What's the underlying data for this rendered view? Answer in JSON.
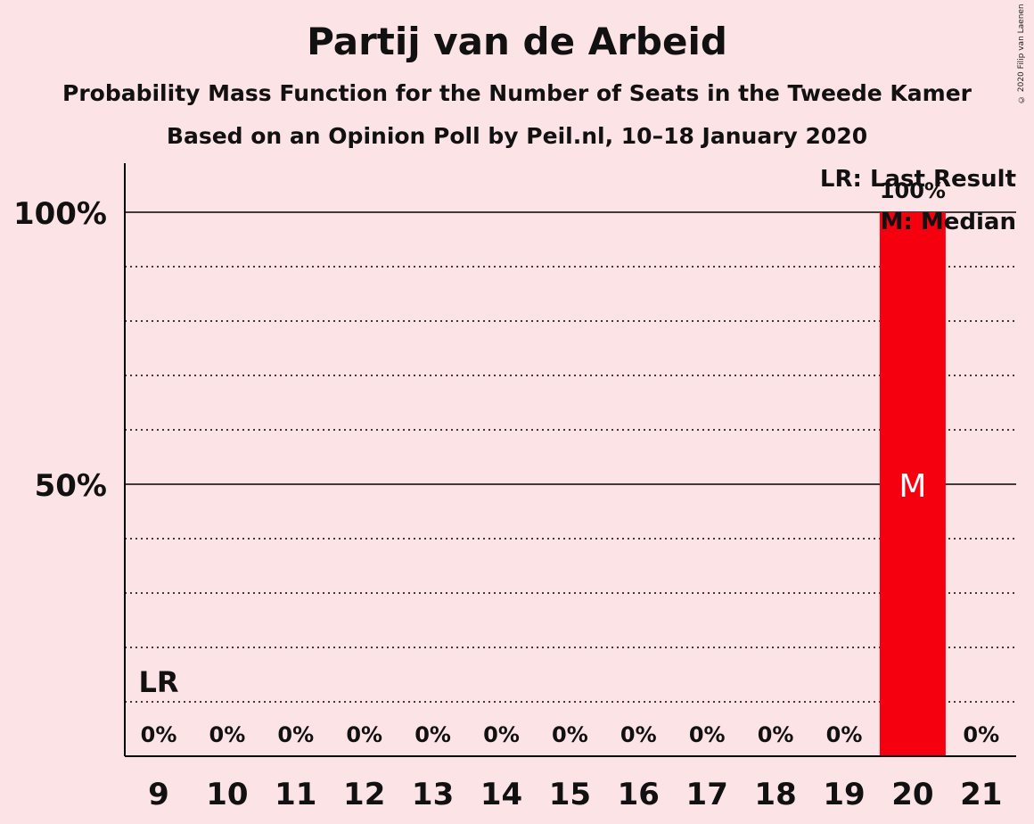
{
  "header": {
    "title": "Partij van de Arbeid",
    "subtitle1": "Probability Mass Function for the Number of Seats in the Tweede Kamer",
    "subtitle2": "Based on an Opinion Poll by Peil.nl, 10–18 January 2020",
    "copyright": "© 2020 Filip van Laenen"
  },
  "chart_data": {
    "type": "bar",
    "categories": [
      "9",
      "10",
      "11",
      "12",
      "13",
      "14",
      "15",
      "16",
      "17",
      "18",
      "19",
      "20",
      "21"
    ],
    "values": [
      0,
      0,
      0,
      0,
      0,
      0,
      0,
      0,
      0,
      0,
      0,
      100,
      0
    ],
    "data_labels": [
      "0%",
      "0%",
      "0%",
      "0%",
      "0%",
      "0%",
      "0%",
      "0%",
      "0%",
      "0%",
      "0%",
      "100%",
      "0%"
    ],
    "ylim": [
      0,
      100
    ],
    "yticks": [
      {
        "value": 50,
        "label": "50%"
      },
      {
        "value": 100,
        "label": "100%"
      }
    ],
    "minor_grid_step": 10,
    "last_result": {
      "category": "9",
      "label": "LR"
    },
    "median": {
      "category": "20",
      "label": "M"
    },
    "legend": {
      "lines": [
        "LR: Last Result",
        "M: Median"
      ],
      "placement": "top-right"
    },
    "colors": {
      "bar": "#f5000f",
      "background": "#fce4e6",
      "axis": "#000000",
      "median_text": "#ffffff"
    }
  }
}
